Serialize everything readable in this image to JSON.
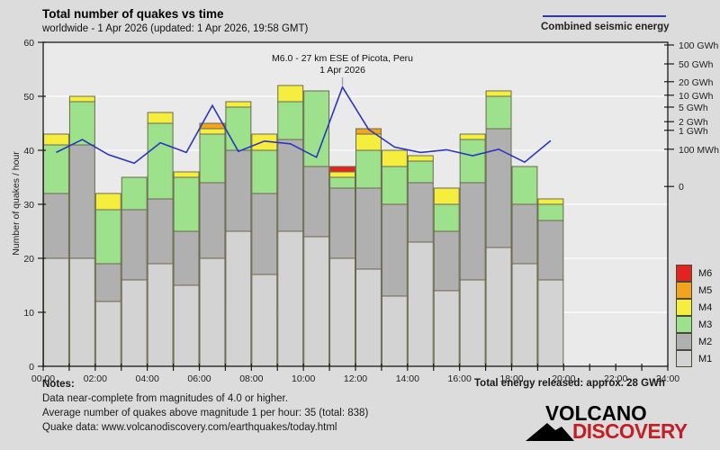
{
  "header": {
    "title": "Total number of quakes vs time",
    "subtitle": "worldwide -  1 Apr 2026 (updated: 1 Apr 2026, 19:58 GMT)"
  },
  "energy_legend": {
    "label": "Combined seismic energy",
    "line_color": "#2b36bd"
  },
  "annotation": {
    "line1": "M6.0 - 27 km ESE of Picota, Peru",
    "line2": "1 Apr 2026",
    "anchor_hour": 11.5
  },
  "notes": {
    "heading": "Notes:",
    "lines": [
      "Data near-complete from magnitudes of 4.0 or higher.",
      "Average number of quakes above magnitude 1 per hour: 35 (total: 838)",
      "Quake data: www.volcanodiscovery.com/earthquakes/today.html"
    ]
  },
  "total_energy_label": "Total energy released: approx. 28 GWh",
  "logo": {
    "line1": "VOLCANO",
    "line2": "DISCOVERY"
  },
  "chart_data": {
    "type": "bar",
    "subtype": "stacked-bars-with-line",
    "title": "Total number of quakes vs time",
    "ylabel": "Number of quakes / hour",
    "xlabel": "",
    "ylim": [
      0,
      60
    ],
    "yticks": [
      0,
      10,
      20,
      30,
      40,
      50,
      60
    ],
    "hours_total": 24,
    "xtick_every_hours": 2,
    "xtick_labels": [
      "00:00",
      "02:00",
      "04:00",
      "06:00",
      "08:00",
      "10:00",
      "12:00",
      "14:00",
      "16:00",
      "18:00",
      "20:00",
      "22:00",
      "24:00"
    ],
    "categories": [
      "00:00",
      "01:00",
      "02:00",
      "03:00",
      "04:00",
      "05:00",
      "06:00",
      "07:00",
      "08:00",
      "09:00",
      "10:00",
      "11:00",
      "12:00",
      "13:00",
      "14:00",
      "15:00",
      "16:00",
      "17:00",
      "18:00",
      "19:00"
    ],
    "series": [
      {
        "name": "M1",
        "color": "#d3d3d3",
        "values": [
          20,
          20,
          12,
          16,
          19,
          15,
          20,
          25,
          17,
          25,
          24,
          20,
          18,
          13,
          23,
          14,
          16,
          22,
          19,
          16
        ]
      },
      {
        "name": "M2",
        "color": "#b0b0b0",
        "values": [
          12,
          21,
          7,
          13,
          12,
          10,
          14,
          15,
          15,
          17,
          13,
          13,
          15,
          17,
          11,
          11,
          18,
          22,
          11,
          11
        ]
      },
      {
        "name": "M3",
        "color": "#9de18d",
        "values": [
          9,
          8,
          10,
          6,
          14,
          10,
          9,
          8,
          8,
          7,
          14,
          2,
          7,
          7,
          4,
          5,
          8,
          6,
          7,
          3
        ]
      },
      {
        "name": "M4",
        "color": "#f6ee3e",
        "values": [
          2,
          1,
          3,
          0,
          2,
          1,
          1,
          1,
          3,
          3,
          0,
          1,
          3,
          3,
          1,
          3,
          1,
          1,
          0,
          1
        ]
      },
      {
        "name": "M5",
        "color": "#f2a41f",
        "values": [
          0,
          0,
          0,
          0,
          0,
          0,
          1,
          0,
          0,
          0,
          0,
          0,
          1,
          0,
          0,
          0,
          0,
          0,
          0,
          0
        ]
      },
      {
        "name": "M6",
        "color": "#e32222",
        "values": [
          0,
          0,
          0,
          0,
          0,
          0,
          0,
          0,
          0,
          0,
          0,
          1,
          0,
          0,
          0,
          0,
          0,
          0,
          0,
          0
        ]
      }
    ],
    "line_series": {
      "name": "Combined seismic energy",
      "color": "#2b36bd",
      "values_left_axis_units": [
        39.6,
        42.0,
        39.2,
        37.6,
        41.4,
        39.6,
        48.3,
        39.8,
        41.7,
        41.2,
        38.7,
        51.7,
        43.9,
        40.6,
        39.6,
        40.1,
        39.0,
        40.2,
        37.8,
        41.8
      ]
    },
    "right_axis": {
      "ticks": [
        {
          "label": "100 GWh",
          "v": 59.5
        },
        {
          "label": "50 GWh",
          "v": 56.0
        },
        {
          "label": "20 GWh",
          "v": 52.7
        },
        {
          "label": "10 GWh",
          "v": 50.2
        },
        {
          "label": "5 GWh",
          "v": 48.0
        },
        {
          "label": "2 GWh",
          "v": 45.3
        },
        {
          "label": "1 GWh",
          "v": 43.7
        },
        {
          "label": "100 MWh",
          "v": 40.2
        },
        {
          "label": "0",
          "v": 33.3
        }
      ]
    },
    "legend_position": "right",
    "grid": true,
    "bar_border_color": "#6a6a4d",
    "plot_bg": "#eaeaea",
    "grid_color": "#f9f9f9",
    "axis_color": "#1a1a1a"
  }
}
